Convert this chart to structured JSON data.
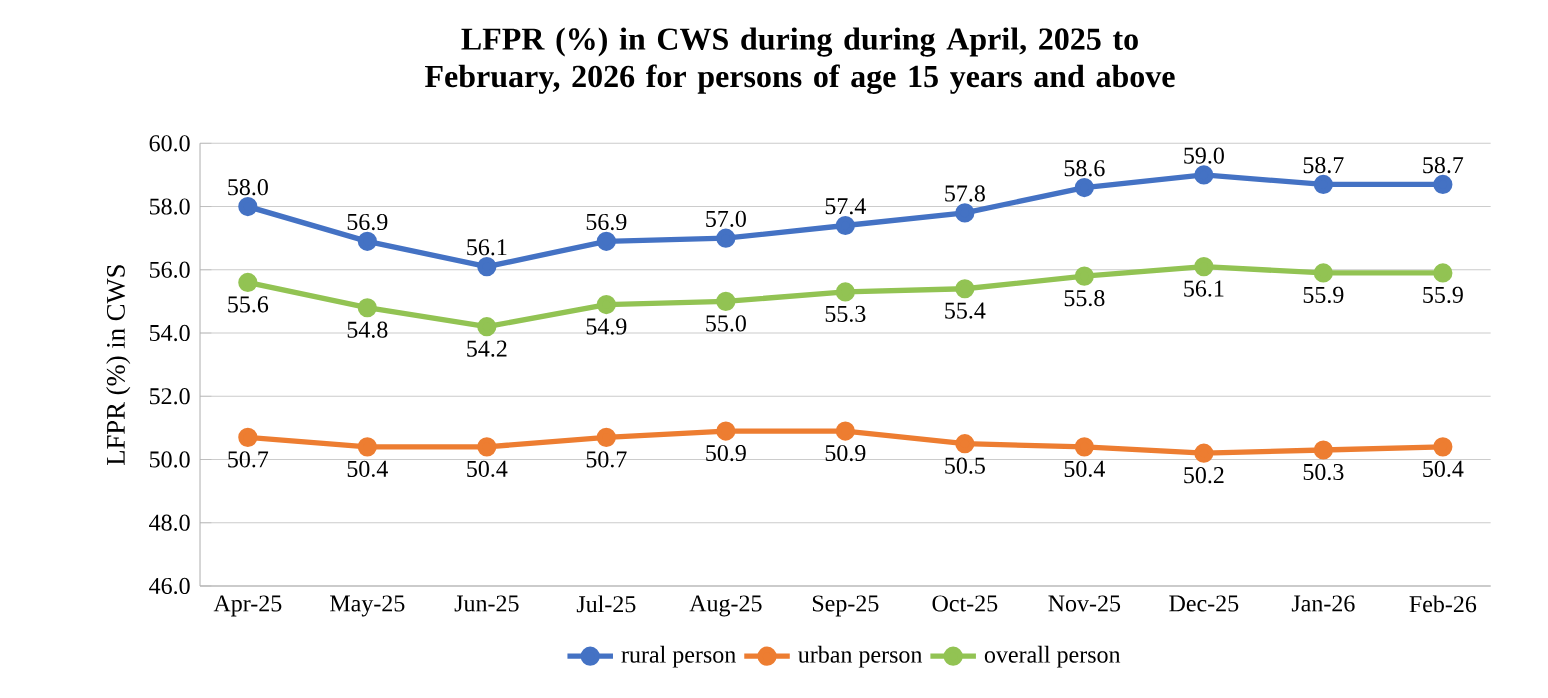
{
  "chart_data": {
    "type": "line",
    "title": "LFPR (%) in CWS during during April, 2025 to February, 2026 for persons of age 15 years and above",
    "ylabel": "LFPR (%) in CWS",
    "categories": [
      "Apr-25",
      "May-25",
      "Jun-25",
      "Jul-25",
      "Aug-25",
      "Sep-25",
      "Oct-25",
      "Nov-25",
      "Dec-25",
      "Jan-26",
      "Feb-26"
    ],
    "series": [
      {
        "name": "rural person",
        "color": "#4472c4",
        "values": [
          58.0,
          56.9,
          56.1,
          56.9,
          57.0,
          57.4,
          57.8,
          58.6,
          59.0,
          58.7,
          58.7
        ],
        "value_labels": [
          "58.0",
          "56.9",
          "56.1",
          "56.9",
          "57.0",
          "57.4",
          "57.8",
          "58.6",
          "59.0",
          "58.7",
          "58.7"
        ]
      },
      {
        "name": "urban person",
        "color": "#ed7d31",
        "values": [
          50.7,
          50.4,
          50.4,
          50.7,
          50.9,
          50.9,
          50.5,
          50.4,
          50.2,
          50.3,
          50.4
        ],
        "value_labels": [
          "50.7",
          "50.4",
          "50.4",
          "50.7",
          "50.9",
          "50.9",
          "50.5",
          "50.4",
          "50.2",
          "50.3",
          "50.4"
        ]
      },
      {
        "name": "overall person",
        "color": "#92c353",
        "values": [
          55.6,
          54.8,
          54.2,
          54.9,
          55.0,
          55.3,
          55.4,
          55.8,
          56.1,
          55.9,
          55.9
        ],
        "value_labels": [
          "55.6",
          "54.8",
          "54.2",
          "54.9",
          "55.0",
          "55.3",
          "55.4",
          "55.8",
          "56.1",
          "55.9",
          "55.9"
        ]
      }
    ],
    "ylim": [
      46,
      60
    ],
    "yticks": [
      {
        "value": 46,
        "label": "46.0"
      },
      {
        "value": 48,
        "label": "48.0"
      },
      {
        "value": 50,
        "label": "50.0"
      },
      {
        "value": 52,
        "label": "52.0"
      },
      {
        "value": 54,
        "label": "54.0"
      },
      {
        "value": 56,
        "label": "56.0"
      },
      {
        "value": 58,
        "label": "58.0"
      },
      {
        "value": 60,
        "label": "60.0"
      }
    ],
    "grid": "y",
    "legend": "bottom",
    "marker": "circle",
    "line_style": "solid"
  }
}
